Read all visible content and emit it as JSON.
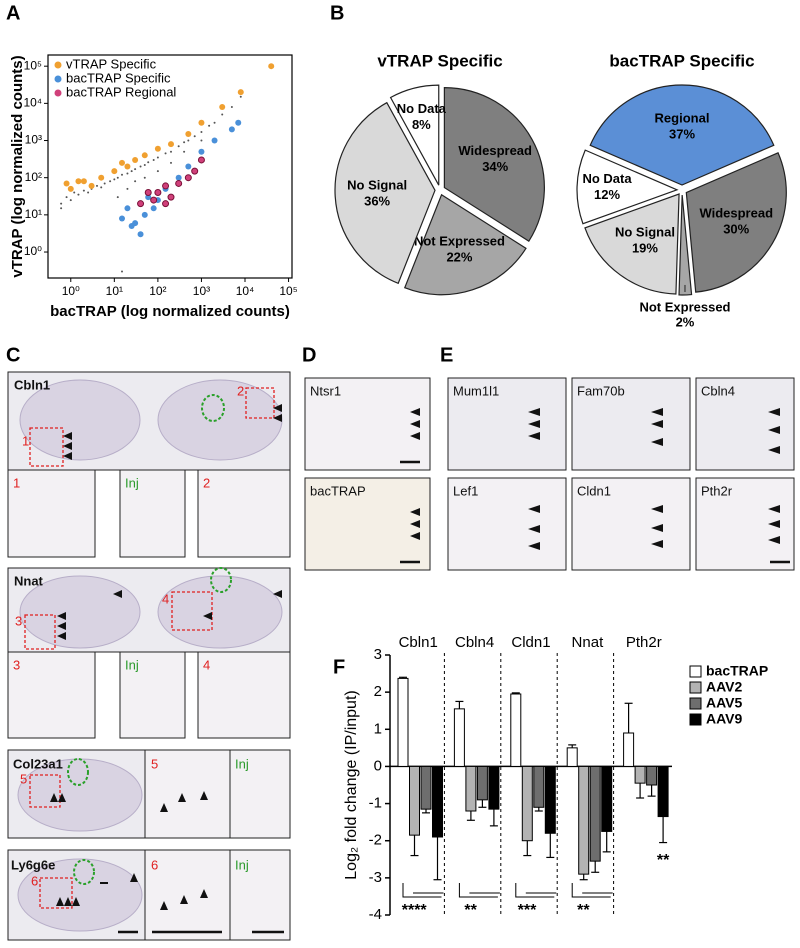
{
  "panel_labels": [
    "A",
    "B",
    "C",
    "D",
    "E",
    "F"
  ],
  "panel_c": {
    "rows": [
      {
        "gene": "Cbln1",
        "insets": [
          "1",
          "2"
        ],
        "tiles": [
          "1",
          "Inj",
          "2"
        ]
      },
      {
        "gene": "Nnat",
        "insets": [
          "3",
          "4"
        ],
        "tiles": [
          "3",
          "Inj",
          "4"
        ]
      },
      {
        "gene": "Col23a1",
        "insets": [
          "5"
        ],
        "tiles": [
          "5",
          "Inj"
        ]
      },
      {
        "gene": "Ly6g6e",
        "insets": [
          "6"
        ],
        "tiles": [
          "6",
          "Inj"
        ]
      }
    ]
  },
  "panel_d": {
    "images": [
      "Ntsr1",
      "bacTRAP"
    ]
  },
  "panel_e": {
    "images": [
      "Mum1l1",
      "Fam70b",
      "Cbln4",
      "Lef1",
      "Cldn1",
      "Pth2r"
    ]
  },
  "chart_data": [
    {
      "type": "scatter",
      "xlabel": "bacTRAP (log normalized counts)",
      "ylabel": "vTRAP (log normalized counts)",
      "log_x": true,
      "log_y": true,
      "xlim": [
        0.3,
        120000
      ],
      "ylim": [
        0.2,
        200000
      ],
      "xticks": [
        {
          "value": 1,
          "label": "10⁰"
        },
        {
          "value": 10,
          "label": "10¹"
        },
        {
          "value": 100,
          "label": "10²"
        },
        {
          "value": 1000,
          "label": "10³"
        },
        {
          "value": 10000,
          "label": "10⁴"
        },
        {
          "value": 100000,
          "label": "10⁵"
        }
      ],
      "yticks": [
        {
          "value": 1,
          "label": "10⁰"
        },
        {
          "value": 10,
          "label": "10¹"
        },
        {
          "value": 100,
          "label": "10²"
        },
        {
          "value": 1000,
          "label": "10³"
        },
        {
          "value": 10000,
          "label": "10⁴"
        },
        {
          "value": 100000,
          "label": "10⁵"
        }
      ],
      "legend": "upper left",
      "series": [
        {
          "color": "#555555",
          "x": [
            0.6,
            0.8,
            1,
            1.2,
            1.5,
            2,
            2.5,
            3,
            4,
            5,
            6,
            8,
            10,
            12,
            15,
            20,
            25,
            30,
            40,
            50,
            60,
            80,
            100,
            150,
            200,
            300,
            400,
            500,
            700,
            1000,
            1500,
            2000,
            3000,
            5000,
            8000,
            12,
            20,
            30,
            50,
            100,
            200,
            400,
            1000,
            15,
            0.6
          ],
          "values": [
            20,
            30,
            25,
            40,
            35,
            45,
            40,
            50,
            60,
            55,
            70,
            80,
            90,
            100,
            120,
            130,
            150,
            170,
            200,
            220,
            260,
            300,
            350,
            450,
            500,
            700,
            900,
            1000,
            1300,
            1700,
            2500,
            3000,
            5000,
            8000,
            15000,
            30,
            50,
            80,
            100,
            150,
            250,
            500,
            1000,
            0.3,
            15
          ]
        },
        {
          "name": "vTRAP Specific",
          "color": "#f0a030",
          "x": [
            0.8,
            1,
            1.5,
            2,
            3,
            5,
            10,
            15,
            20,
            30,
            50,
            100,
            200,
            500,
            1000,
            3000,
            8000,
            40000
          ],
          "values": [
            70,
            50,
            80,
            80,
            60,
            100,
            150,
            250,
            200,
            300,
            400,
            600,
            800,
            1500,
            3000,
            8000,
            20000,
            100000
          ]
        },
        {
          "name": "bacTRAP Specific",
          "color": "#4a90d9",
          "x": [
            15,
            20,
            25,
            30,
            40,
            40,
            50,
            60,
            80,
            100,
            150,
            200,
            300,
            500,
            1000,
            2000,
            5000,
            7000
          ],
          "values": [
            8,
            15,
            5,
            6,
            20,
            3,
            10,
            30,
            15,
            25,
            50,
            30,
            100,
            200,
            500,
            1000,
            2000,
            3000
          ]
        },
        {
          "name": "bacTRAP Regional",
          "color": "#d0407a",
          "x": [
            40,
            60,
            80,
            100,
            150,
            150,
            200,
            300,
            500,
            700,
            1000
          ],
          "values": [
            20,
            40,
            25,
            40,
            20,
            60,
            30,
            70,
            100,
            150,
            300
          ]
        }
      ]
    },
    {
      "type": "pie",
      "title": "vTRAP Specific",
      "categories": [
        "Widespread",
        "Not Expressed",
        "No Signal",
        "No Data"
      ],
      "values": [
        34,
        22,
        36,
        8
      ],
      "value_labels": [
        "34%",
        "22%",
        "36%",
        "8%"
      ],
      "colors": [
        "#7f7f7f",
        "#a6a6a6",
        "#d9d9d9",
        "#ffffff"
      ]
    },
    {
      "type": "pie",
      "title": "bacTRAP Specific",
      "categories": [
        "Regional",
        "Widespread",
        "Not Expressed",
        "No Signal",
        "No Data"
      ],
      "values": [
        37,
        30,
        2,
        19,
        12
      ],
      "value_labels": [
        "37%",
        "30%",
        "2%",
        "19%",
        "12%"
      ],
      "colors": [
        "#5b8fd6",
        "#7f7f7f",
        "#a6a6a6",
        "#d9d9d9",
        "#ffffff"
      ]
    },
    {
      "type": "bar",
      "ylabel": "Log₂ fold change (IP/input)",
      "categories": [
        "Cbln1",
        "Cbln4",
        "Cldn1",
        "Nnat",
        "Pth2r"
      ],
      "ylim": [
        -4,
        3
      ],
      "yticks": [
        -4,
        -3,
        -2,
        -1,
        0,
        1,
        2,
        3
      ],
      "series": [
        {
          "name": "bacTRAP",
          "color": "#ffffff",
          "values": [
            2.37,
            1.55,
            1.95,
            0.5,
            0.9
          ],
          "errors": [
            0.03,
            0.2,
            0.03,
            0.08,
            0.8
          ]
        },
        {
          "name": "AAV2",
          "color": "#b3b3b3",
          "values": [
            -1.85,
            -1.2,
            -2.0,
            -2.9,
            -0.45
          ],
          "errors": [
            0.55,
            0.25,
            0.4,
            0.15,
            0.4
          ]
        },
        {
          "name": "AAV5",
          "color": "#6e6e6e",
          "values": [
            -1.15,
            -0.9,
            -1.1,
            -2.55,
            -0.5
          ],
          "errors": [
            0.1,
            0.2,
            0.1,
            0.3,
            0.3
          ]
        },
        {
          "name": "AAV9",
          "color": "#000000",
          "values": [
            -1.9,
            -1.15,
            -1.8,
            -1.75,
            -1.35
          ],
          "errors": [
            1.15,
            0.45,
            0.65,
            0.55,
            0.7
          ]
        }
      ],
      "significance": [
        "****",
        "**",
        "***",
        "**",
        "**"
      ]
    }
  ]
}
